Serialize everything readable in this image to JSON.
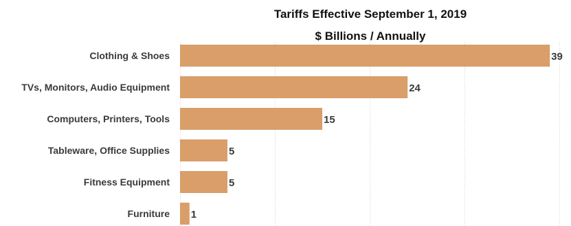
{
  "chart_data": {
    "type": "bar",
    "orientation": "horizontal",
    "title": "Tariffs Effective September 1, 2019",
    "subtitle": "$ Billions / Annually",
    "categories": [
      "Clothing & Shoes",
      "TVs, Monitors, Audio Equipment",
      "Computers, Printers, Tools",
      "Tableware, Office Supplies",
      "Fitness Equipment",
      "Furniture"
    ],
    "values": [
      39,
      24,
      15,
      5,
      5,
      1
    ],
    "value_labels": [
      "39",
      "24",
      "15",
      "5",
      "5",
      "1"
    ],
    "xlim": [
      0,
      40
    ],
    "grid": true,
    "bar_color": "#d99e6a",
    "legend": "none"
  }
}
